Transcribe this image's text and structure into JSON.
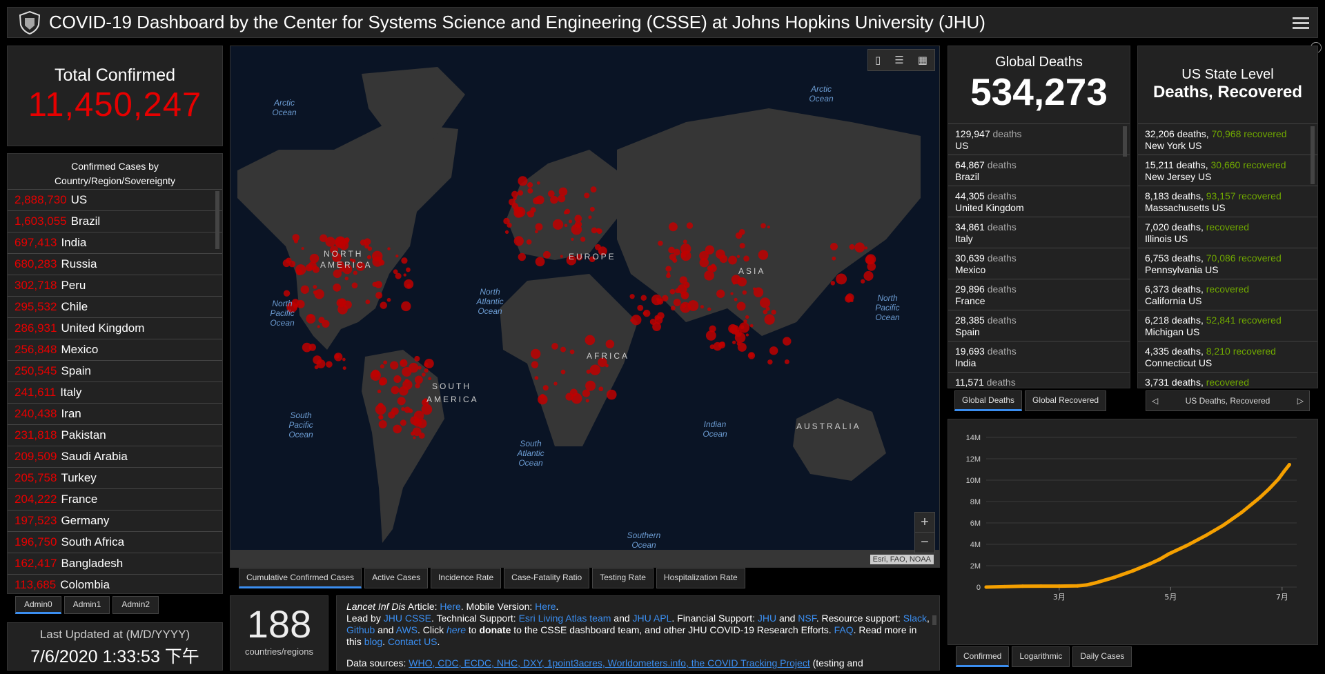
{
  "header": {
    "title": "COVID-19 Dashboard by the Center for Systems Science and Engineering (CSSE) at Johns Hopkins University (JHU)"
  },
  "total_confirmed": {
    "label": "Total Confirmed",
    "value": "11,450,247"
  },
  "cases_by_country": {
    "title_line1": "Confirmed Cases by",
    "title_line2": "Country/Region/Sovereignty",
    "items": [
      {
        "num": "2,888,730",
        "name": "US"
      },
      {
        "num": "1,603,055",
        "name": "Brazil"
      },
      {
        "num": "697,413",
        "name": "India"
      },
      {
        "num": "680,283",
        "name": "Russia"
      },
      {
        "num": "302,718",
        "name": "Peru"
      },
      {
        "num": "295,532",
        "name": "Chile"
      },
      {
        "num": "286,931",
        "name": "United Kingdom"
      },
      {
        "num": "256,848",
        "name": "Mexico"
      },
      {
        "num": "250,545",
        "name": "Spain"
      },
      {
        "num": "241,611",
        "name": "Italy"
      },
      {
        "num": "240,438",
        "name": "Iran"
      },
      {
        "num": "231,818",
        "name": "Pakistan"
      },
      {
        "num": "209,509",
        "name": "Saudi Arabia"
      },
      {
        "num": "205,758",
        "name": "Turkey"
      },
      {
        "num": "204,222",
        "name": "France"
      },
      {
        "num": "197,523",
        "name": "Germany"
      },
      {
        "num": "196,750",
        "name": "South Africa"
      },
      {
        "num": "162,417",
        "name": "Bangladesh"
      },
      {
        "num": "113,685",
        "name": "Colombia"
      }
    ],
    "tabs": [
      "Admin0",
      "Admin1",
      "Admin2"
    ]
  },
  "last_updated": {
    "label": "Last Updated at (M/D/YYYY)",
    "value": "7/6/2020 1:33:53 下午"
  },
  "map": {
    "labels": {
      "north_america": "NORTH",
      "north_america2": "AMERICA",
      "europe": "EUROPE",
      "asia": "ASIA",
      "africa": "AFRICA",
      "south_america": "SOUTH",
      "south_america2": "AMERICA",
      "australia": "AUSTRALIA",
      "arctic1": "Arctic",
      "arctic1b": "Ocean",
      "arctic2": "Arctic",
      "arctic2b": "Ocean",
      "npac1": "North",
      "npac1b": "Pacific",
      "npac1c": "Ocean",
      "npac2": "North",
      "npac2b": "Pacific",
      "npac2c": "Ocean",
      "natl": "North",
      "natlb": "Atlantic",
      "natlc": "Ocean",
      "spac": "South",
      "spacb": "Pacific",
      "spacc": "Ocean",
      "satl": "South",
      "satlb": "Atlantic",
      "satlc": "Ocean",
      "indian": "Indian",
      "indianb": "Ocean",
      "southern": "Southern",
      "southernb": "Ocean"
    },
    "attribution": "Esri, FAO, NOAA",
    "zoom_in": "+",
    "zoom_out": "−",
    "tabs": [
      "Cumulative Confirmed Cases",
      "Active Cases",
      "Incidence Rate",
      "Case-Fatality Ratio",
      "Testing Rate",
      "Hospitalization Rate"
    ]
  },
  "countries": {
    "value": "188",
    "label": "countries/regions"
  },
  "info": {
    "l1a": "Lancet Inf Dis",
    "l1b": " Article: ",
    "l1c": "Here",
    "l1d": ". Mobile Version: ",
    "l1e": "Here",
    "l1f": ".",
    "l2a": "Lead by ",
    "l2b": "JHU CSSE",
    "l2c": ". Technical Support: ",
    "l2d": "Esri Living Atlas team",
    "l2e": " and ",
    "l2f": "JHU APL",
    "l2g": ". Financial Support: ",
    "l2h": "JHU",
    "l2i": " and ",
    "l2j": "NSF",
    "l2k": ". Resource support: ",
    "l2l": "Slack",
    "l2m": ",",
    "l3a": "Github",
    "l3b": " and ",
    "l3c": "AWS",
    "l3d": ". Click ",
    "l3e": "here",
    "l3f": " to ",
    "l3g": "donate",
    "l3h": " to the CSSE dashboard team, and other JHU COVID-19 Research Efforts. ",
    "l3i": "FAQ",
    "l3j": ". Read more in",
    "l4a": "this ",
    "l4b": "blog",
    "l4c": ". ",
    "l4d": "Contact US",
    "l4e": ".",
    "l5a": "Data sources: ",
    "l5b": "WHO, CDC, ECDC, NHC, DXY, 1point3acres, Worldometers.info, the COVID Tracking Project",
    "l5c": " (testing and"
  },
  "global_deaths": {
    "label": "Global Deaths",
    "value": "534,273",
    "items": [
      {
        "num": "129,947",
        "unit": "deaths",
        "name": "US"
      },
      {
        "num": "64,867",
        "unit": "deaths",
        "name": "Brazil"
      },
      {
        "num": "44,305",
        "unit": "deaths",
        "name": "United Kingdom"
      },
      {
        "num": "34,861",
        "unit": "deaths",
        "name": "Italy"
      },
      {
        "num": "30,639",
        "unit": "deaths",
        "name": "Mexico"
      },
      {
        "num": "29,896",
        "unit": "deaths",
        "name": "France"
      },
      {
        "num": "28,385",
        "unit": "deaths",
        "name": "Spain"
      },
      {
        "num": "19,693",
        "unit": "deaths",
        "name": "India"
      },
      {
        "num": "11,571",
        "unit": "deaths",
        "name": ""
      }
    ],
    "tabs": [
      "Global Deaths",
      "Global Recovered"
    ]
  },
  "us_state": {
    "label1": "US State Level",
    "label2": "Deaths, Recovered",
    "items": [
      {
        "deaths": "32,206 deaths,",
        "recovered_num": "70,968",
        "recovered": "recovered",
        "name": "New York US"
      },
      {
        "deaths": "15,211 deaths,",
        "recovered_num": "30,660",
        "recovered": "recovered",
        "name": "New Jersey US"
      },
      {
        "deaths": "8,183 deaths,",
        "recovered_num": "93,157",
        "recovered": "recovered",
        "name": "Massachusetts US"
      },
      {
        "deaths": "7,020 deaths,",
        "recovered_num": "",
        "recovered": "recovered",
        "name": "Illinois US"
      },
      {
        "deaths": "6,753 deaths,",
        "recovered_num": "70,086",
        "recovered": "recovered",
        "name": "Pennsylvania US"
      },
      {
        "deaths": "6,373 deaths,",
        "recovered_num": "",
        "recovered": "recovered",
        "name": "California US"
      },
      {
        "deaths": "6,218 deaths,",
        "recovered_num": "52,841",
        "recovered": "recovered",
        "name": "Michigan US"
      },
      {
        "deaths": "4,335 deaths,",
        "recovered_num": "8,210",
        "recovered": "recovered",
        "name": "Connecticut US"
      },
      {
        "deaths": "3,731 deaths,",
        "recovered_num": "",
        "recovered": "recovered",
        "name": ""
      }
    ],
    "tab": "US Deaths, Recovered"
  },
  "chart_tabs": [
    "Confirmed",
    "Logarithmic",
    "Daily Cases"
  ],
  "colors": {
    "accent_red": "#e60000",
    "line_orange": "#f5a000",
    "recovered_green": "#70a800",
    "link_blue": "#3b8ef0"
  },
  "chart_data": {
    "type": "line",
    "title": "",
    "xlabel": "",
    "ylabel": "",
    "ylim": [
      0,
      14000000
    ],
    "y_ticks": [
      "0",
      "2M",
      "4M",
      "6M",
      "8M",
      "10M",
      "12M",
      "14M"
    ],
    "x_ticks": [
      {
        "label": "3月",
        "x": 40
      },
      {
        "label": "5月",
        "x": 101
      },
      {
        "label": "7月",
        "x": 162
      }
    ],
    "x": [
      0,
      10,
      20,
      30,
      40,
      50,
      55,
      60,
      65,
      70,
      75,
      80,
      85,
      90,
      95,
      100,
      105,
      110,
      115,
      120,
      125,
      130,
      135,
      140,
      145,
      150,
      155,
      160,
      163,
      166
    ],
    "values": [
      0,
      40000,
      78000,
      85000,
      90000,
      110000,
      200000,
      400000,
      650000,
      900000,
      1200000,
      1500000,
      1850000,
      2200000,
      2600000,
      3100000,
      3500000,
      3900000,
      4350000,
      4800000,
      5300000,
      5800000,
      6400000,
      7000000,
      7700000,
      8400000,
      9200000,
      10100000,
      10800000,
      11450247
    ]
  }
}
